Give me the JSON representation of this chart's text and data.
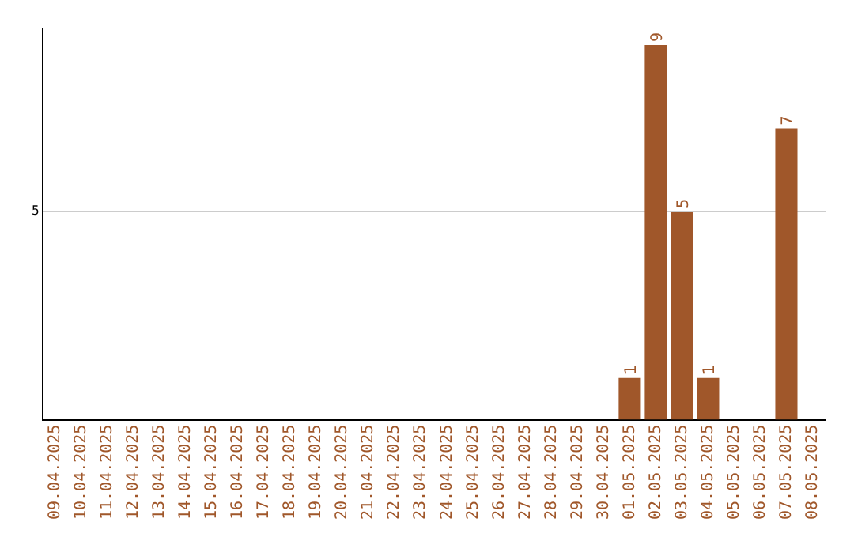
{
  "chart_data": {
    "type": "bar",
    "categories": [
      "09.04.2025",
      "10.04.2025",
      "11.04.2025",
      "12.04.2025",
      "13.04.2025",
      "14.04.2025",
      "15.04.2025",
      "16.04.2025",
      "17.04.2025",
      "18.04.2025",
      "19.04.2025",
      "20.04.2025",
      "21.04.2025",
      "22.04.2025",
      "23.04.2025",
      "24.04.2025",
      "25.04.2025",
      "26.04.2025",
      "27.04.2025",
      "28.04.2025",
      "29.04.2025",
      "30.04.2025",
      "01.05.2025",
      "02.05.2025",
      "03.05.2025",
      "04.05.2025",
      "05.05.2025",
      "06.05.2025",
      "07.05.2025",
      "08.05.2025"
    ],
    "values": [
      null,
      null,
      null,
      null,
      null,
      null,
      null,
      null,
      null,
      null,
      null,
      null,
      null,
      null,
      null,
      null,
      null,
      null,
      null,
      null,
      null,
      null,
      1,
      9,
      5,
      1,
      null,
      null,
      7,
      null
    ],
    "data_labels": true,
    "color": "#a0572a",
    "ylim": [
      0,
      9.4
    ],
    "yticks": [
      5
    ],
    "grid": "y",
    "legend": false
  }
}
